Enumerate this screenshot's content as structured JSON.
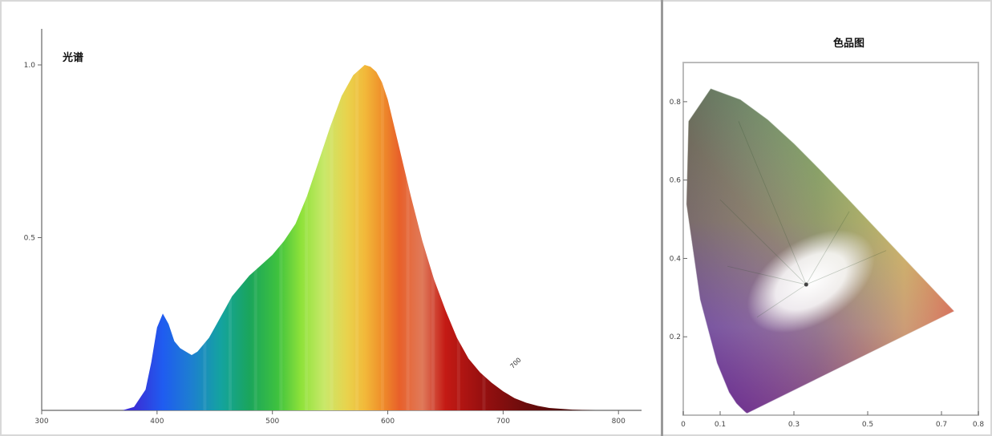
{
  "chart_data": [
    {
      "type": "area",
      "title": "光谱",
      "subtitle": "",
      "xlabel": "",
      "ylabel": "",
      "xlim": [
        300,
        820
      ],
      "ylim": [
        0,
        1.0
      ],
      "xticks": [
        {
          "value": 300,
          "label": "300"
        },
        {
          "value": 400,
          "label": "400"
        },
        {
          "value": 500,
          "label": "500"
        },
        {
          "value": 600,
          "label": "600"
        },
        {
          "value": 700,
          "label": "700"
        },
        {
          "value": 800,
          "label": "800"
        }
      ],
      "yticks": [
        {
          "value": 1.0,
          "label": "1.0"
        },
        {
          "value": 0.5,
          "label": "0.5"
        }
      ],
      "x": [
        370,
        380,
        390,
        395,
        400,
        405,
        410,
        415,
        420,
        425,
        430,
        435,
        440,
        445,
        450,
        455,
        460,
        465,
        470,
        475,
        480,
        490,
        500,
        510,
        520,
        530,
        540,
        550,
        560,
        570,
        580,
        585,
        590,
        595,
        600,
        605,
        610,
        620,
        630,
        640,
        650,
        660,
        670,
        680,
        690,
        700,
        710,
        720,
        730,
        740,
        760,
        780
      ],
      "values": [
        0.0,
        0.01,
        0.06,
        0.14,
        0.24,
        0.28,
        0.25,
        0.2,
        0.18,
        0.17,
        0.16,
        0.17,
        0.19,
        0.21,
        0.24,
        0.27,
        0.3,
        0.33,
        0.35,
        0.37,
        0.39,
        0.42,
        0.45,
        0.49,
        0.54,
        0.62,
        0.72,
        0.82,
        0.91,
        0.97,
        1.0,
        0.995,
        0.98,
        0.95,
        0.9,
        0.83,
        0.76,
        0.62,
        0.49,
        0.38,
        0.29,
        0.21,
        0.15,
        0.11,
        0.08,
        0.055,
        0.035,
        0.022,
        0.013,
        0.007,
        0.002,
        0.0
      ],
      "annotations": [
        "700"
      ]
    },
    {
      "type": "scatter",
      "title": "色品图",
      "subtitle": "",
      "xlabel": "",
      "ylabel": "",
      "xlim": [
        0.0,
        0.8
      ],
      "ylim": [
        0.0,
        0.9
      ],
      "xticks": [
        {
          "value": 0.0,
          "label": "0"
        },
        {
          "value": 0.1,
          "label": "0.1"
        },
        {
          "value": 0.3,
          "label": "0.3"
        },
        {
          "value": 0.5,
          "label": "0.5"
        },
        {
          "value": 0.7,
          "label": "0.7"
        },
        {
          "value": 0.8,
          "label": "0.8"
        }
      ],
      "yticks": [
        {
          "value": 0.2,
          "label": "0.2"
        },
        {
          "value": 0.4,
          "label": "0.4"
        },
        {
          "value": 0.6,
          "label": "0.6"
        },
        {
          "value": 0.8,
          "label": "0.8"
        }
      ],
      "locus": {
        "x": [
          0.1741,
          0.1738,
          0.1733,
          0.1726,
          0.1714,
          0.1689,
          0.1644,
          0.1566,
          0.144,
          0.1241,
          0.0913,
          0.0454,
          0.0082,
          0.0139,
          0.0743,
          0.1547,
          0.2296,
          0.3016,
          0.3731,
          0.4441,
          0.5125,
          0.5752,
          0.627,
          0.6658,
          0.6915,
          0.7079,
          0.7347
        ],
        "y": [
          0.005,
          0.0049,
          0.0048,
          0.0048,
          0.0051,
          0.0069,
          0.0109,
          0.0177,
          0.0297,
          0.0578,
          0.1327,
          0.295,
          0.5384,
          0.7502,
          0.8338,
          0.8059,
          0.7543,
          0.6923,
          0.6245,
          0.5547,
          0.4866,
          0.4242,
          0.3725,
          0.334,
          0.3083,
          0.292,
          0.2653
        ]
      },
      "white_point": {
        "x": 0.3333,
        "y": 0.3333
      }
    }
  ]
}
